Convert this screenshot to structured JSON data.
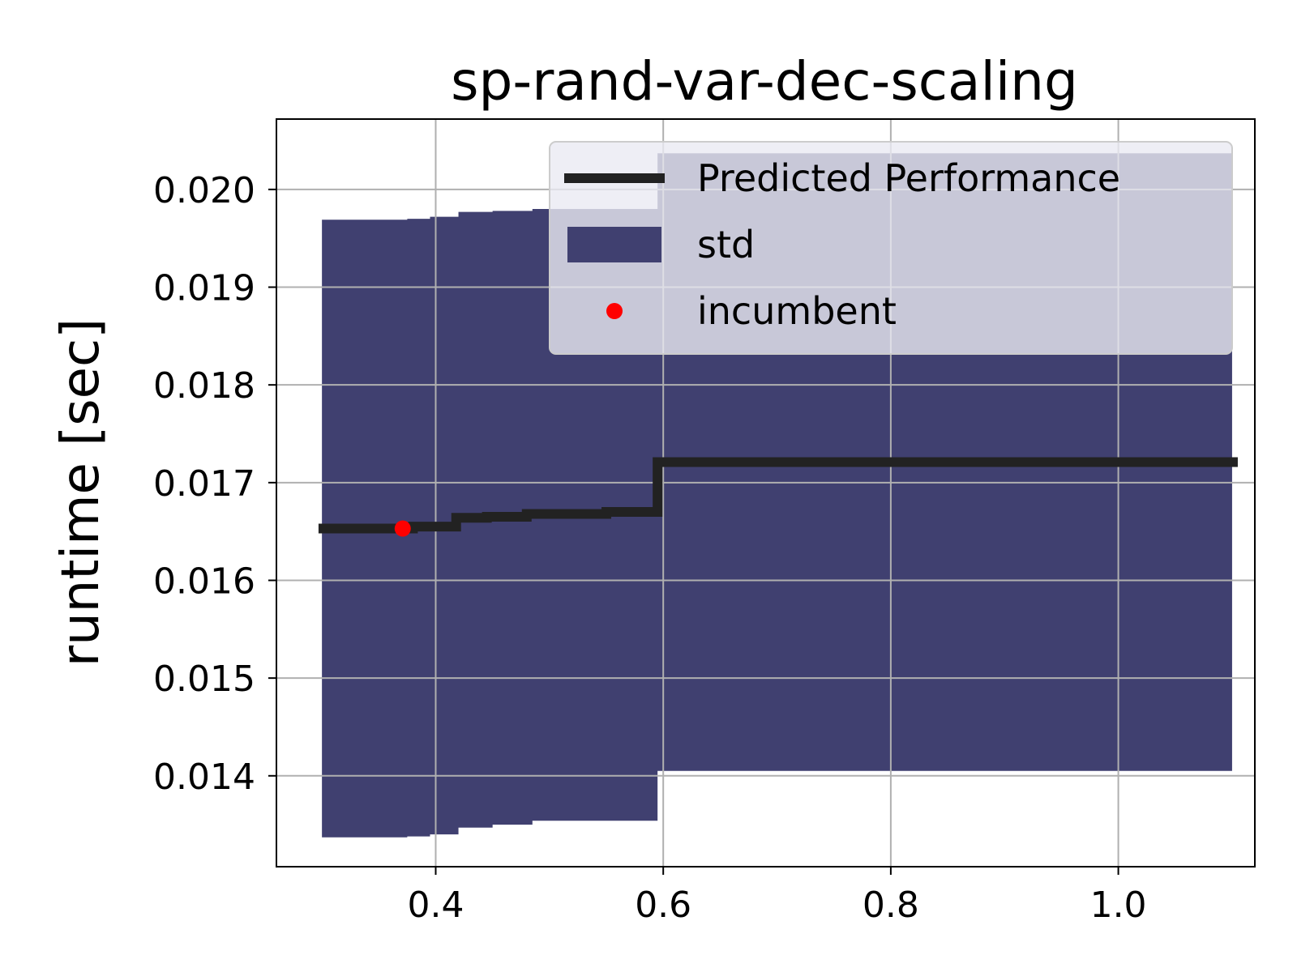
{
  "chart_data": {
    "type": "line",
    "title": "sp-rand-var-dec-scaling",
    "xlabel": "",
    "ylabel": "runtime [sec]",
    "xlim": [
      0.26,
      1.12
    ],
    "ylim": [
      0.01307,
      0.02072
    ],
    "xticks": [
      0.4,
      0.6,
      0.8,
      1.0
    ],
    "xtick_labels": [
      "0.4",
      "0.6",
      "0.8",
      "1.0"
    ],
    "yticks": [
      0.014,
      0.015,
      0.016,
      0.017,
      0.018,
      0.019,
      0.02
    ],
    "ytick_labels": [
      "0.014",
      "0.015",
      "0.016",
      "0.017",
      "0.018",
      "0.019",
      "0.020"
    ],
    "grid": true,
    "legend_position": "top-right",
    "series": [
      {
        "name": "Predicted Performance",
        "kind": "step-line",
        "color": "#222222",
        "x": [
          0.297,
          0.38,
          0.38,
          0.418,
          0.418,
          0.445,
          0.445,
          0.48,
          0.48,
          0.55,
          0.55,
          0.595,
          0.595,
          1.105
        ],
        "y": [
          0.01653,
          0.01653,
          0.01655,
          0.01655,
          0.01664,
          0.01664,
          0.01665,
          0.01665,
          0.01668,
          0.01668,
          0.0167,
          0.0167,
          0.01721,
          0.01721
        ]
      },
      {
        "name": "std",
        "kind": "band",
        "color": "#404070",
        "x": [
          0.3,
          0.375,
          0.375,
          0.395,
          0.395,
          0.42,
          0.42,
          0.45,
          0.45,
          0.485,
          0.485,
          0.595,
          0.595,
          1.1
        ],
        "upper": [
          0.01969,
          0.01969,
          0.0197,
          0.0197,
          0.01972,
          0.01972,
          0.01977,
          0.01977,
          0.01978,
          0.01978,
          0.0198,
          0.0198,
          0.02037,
          0.02037
        ],
        "lower": [
          0.01337,
          0.01337,
          0.01338,
          0.01338,
          0.0134,
          0.0134,
          0.01347,
          0.01347,
          0.0135,
          0.0135,
          0.01354,
          0.01354,
          0.01405,
          0.01405
        ]
      },
      {
        "name": "incumbent",
        "kind": "point",
        "color": "#ff0000",
        "x": [
          0.371
        ],
        "y": [
          0.01653
        ]
      }
    ]
  }
}
